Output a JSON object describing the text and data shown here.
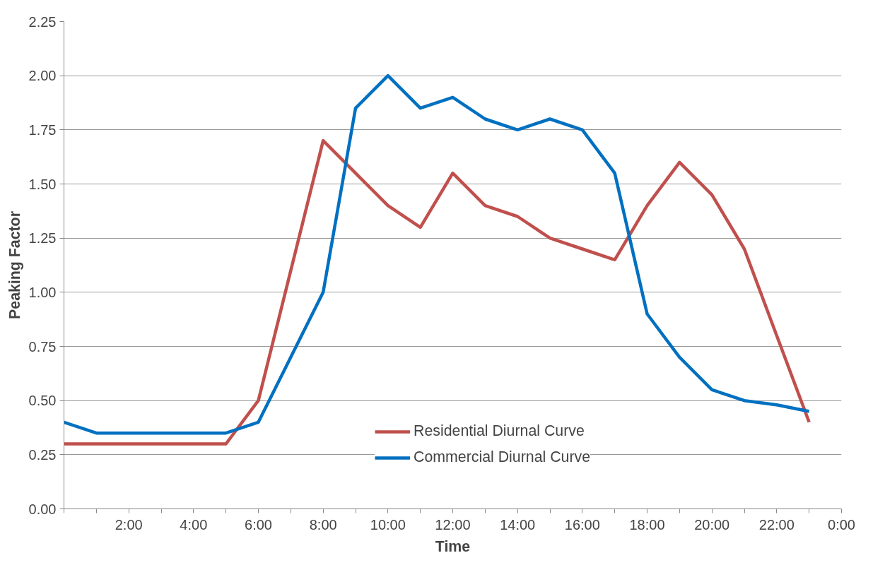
{
  "chart_data": {
    "type": "line",
    "xlabel": "Time",
    "ylabel": "Peaking Factor",
    "x": [
      0,
      1,
      2,
      3,
      4,
      5,
      6,
      7,
      8,
      9,
      10,
      11,
      12,
      13,
      14,
      15,
      16,
      17,
      18,
      19,
      20,
      21,
      22,
      23
    ],
    "series": [
      {
        "name": "Residential Diurnal Curve",
        "color": "#c0504d",
        "values": [
          0.3,
          0.3,
          0.3,
          0.3,
          0.3,
          0.3,
          0.5,
          1.1,
          1.7,
          1.55,
          1.4,
          1.3,
          1.55,
          1.4,
          1.35,
          1.25,
          1.2,
          1.15,
          1.4,
          1.6,
          1.45,
          1.2,
          0.8,
          0.4
        ]
      },
      {
        "name": "Commercial Diurnal Curve",
        "color": "#0070c0",
        "values": [
          0.4,
          0.35,
          0.35,
          0.35,
          0.35,
          0.35,
          0.4,
          0.7,
          1.0,
          1.85,
          2.0,
          1.85,
          1.9,
          1.8,
          1.75,
          1.8,
          1.75,
          1.55,
          0.9,
          0.7,
          0.55,
          0.5,
          0.48,
          0.45
        ]
      }
    ],
    "xlim": [
      0,
      24
    ],
    "xticks": [
      {
        "value": 0,
        "label": null
      },
      {
        "value": 1,
        "label": null
      },
      {
        "value": 2,
        "label": "2:00"
      },
      {
        "value": 3,
        "label": null
      },
      {
        "value": 4,
        "label": "4:00"
      },
      {
        "value": 5,
        "label": null
      },
      {
        "value": 6,
        "label": "6:00"
      },
      {
        "value": 7,
        "label": null
      },
      {
        "value": 8,
        "label": "8:00"
      },
      {
        "value": 9,
        "label": null
      },
      {
        "value": 10,
        "label": "10:00"
      },
      {
        "value": 11,
        "label": null
      },
      {
        "value": 12,
        "label": "12:00"
      },
      {
        "value": 13,
        "label": null
      },
      {
        "value": 14,
        "label": "14:00"
      },
      {
        "value": 15,
        "label": null
      },
      {
        "value": 16,
        "label": "16:00"
      },
      {
        "value": 17,
        "label": null
      },
      {
        "value": 18,
        "label": "18:00"
      },
      {
        "value": 19,
        "label": null
      },
      {
        "value": 20,
        "label": "20:00"
      },
      {
        "value": 21,
        "label": null
      },
      {
        "value": 22,
        "label": "22:00"
      },
      {
        "value": 23,
        "label": null
      },
      {
        "value": 24,
        "label": "0:00"
      }
    ],
    "ylim": [
      0,
      2.25
    ],
    "yticks": [
      {
        "value": 0,
        "label": "0.00"
      },
      {
        "value": 0.25,
        "label": "0.25"
      },
      {
        "value": 0.5,
        "label": "0.50"
      },
      {
        "value": 0.75,
        "label": "0.75"
      },
      {
        "value": 1,
        "label": "1.00"
      },
      {
        "value": 1.25,
        "label": "1.25"
      },
      {
        "value": 1.5,
        "label": "1.50"
      },
      {
        "value": 1.75,
        "label": "1.75"
      },
      {
        "value": 2,
        "label": "2.00"
      },
      {
        "value": 2.25,
        "label": "2.25"
      }
    ],
    "grid": "y",
    "legend": "bottom",
    "marker": "none",
    "line_style": "solid"
  }
}
